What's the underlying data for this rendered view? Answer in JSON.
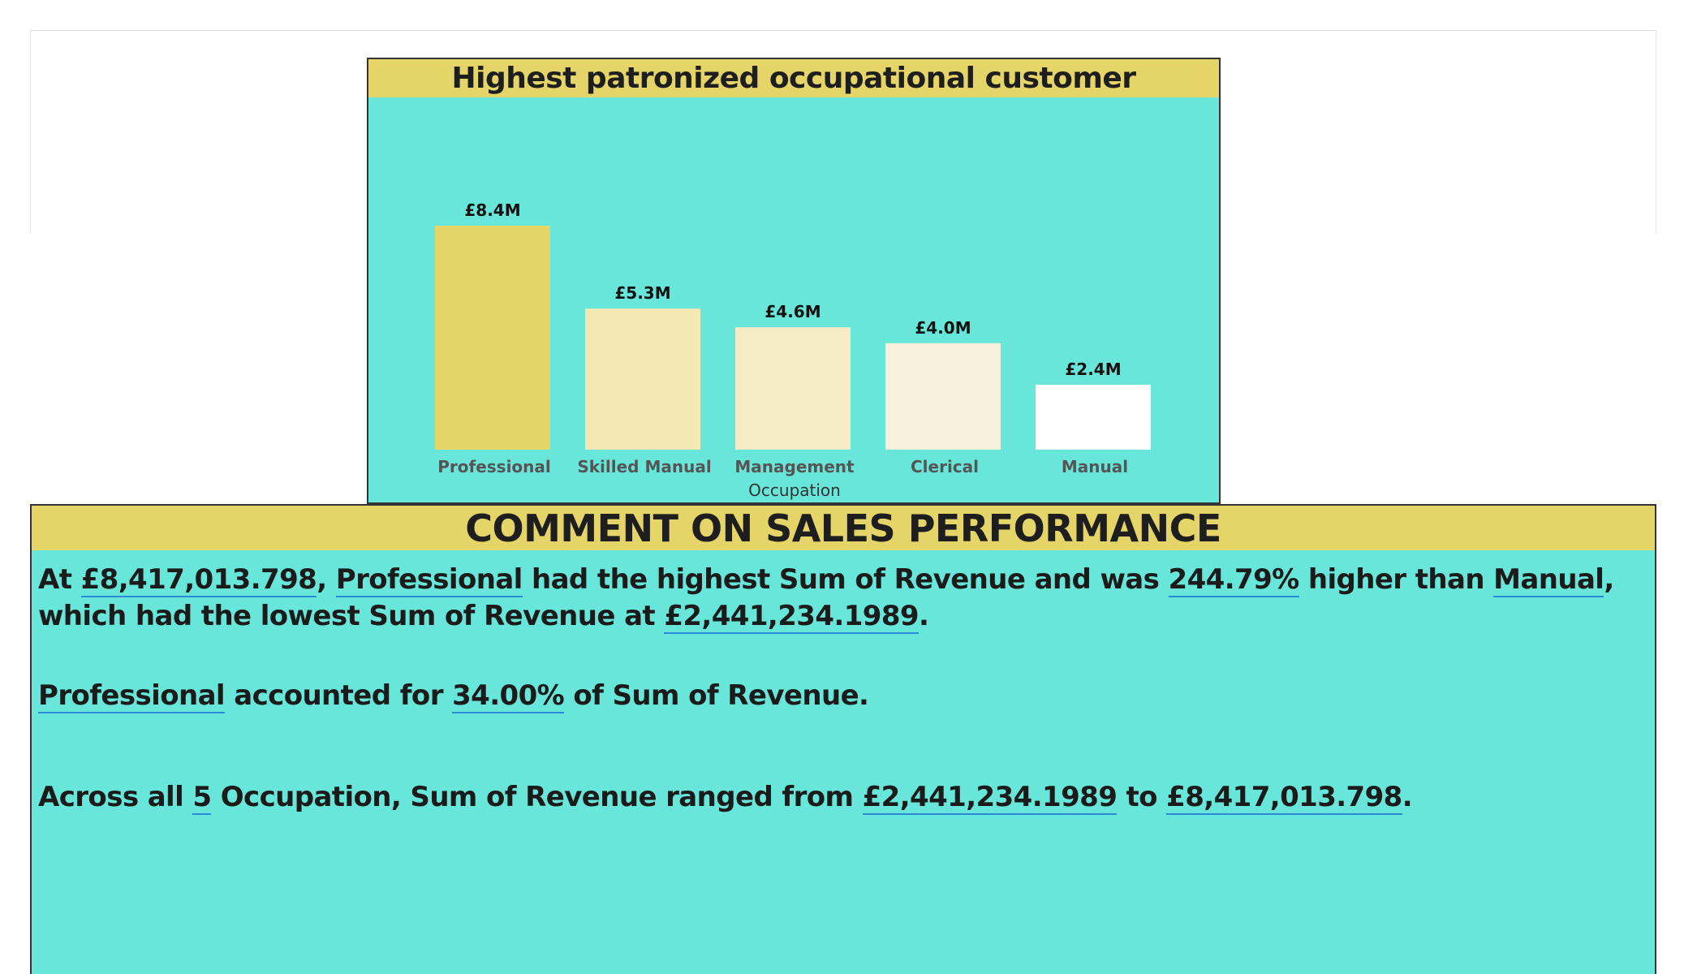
{
  "chart_data": {
    "type": "bar",
    "title": "Highest patronized occupational customer",
    "xlabel": "Occupation",
    "ylabel": "",
    "categories": [
      "Professional",
      "Skilled Manual",
      "Management",
      "Clerical",
      "Manual"
    ],
    "values": [
      8417013.798,
      5300000,
      4600000,
      4000000,
      2441234.1989
    ],
    "data_labels": [
      "£8.4M",
      "£5.3M",
      "£4.6M",
      "£4.0M",
      "£2.4M"
    ],
    "bar_colors": [
      "#e5d468",
      "#f4e8b4",
      "#f5ecc6",
      "#f7f0da",
      "#ffffff"
    ],
    "ylim": [
      0,
      8417013.798
    ],
    "grid": false,
    "legend": "none"
  },
  "colors": {
    "panel_background": "#68e6da",
    "header_background": "#e5d468",
    "link_underline": "#2a8ad8"
  },
  "comment": {
    "title": "COMMENT ON SALES PERFORMANCE",
    "p1": {
      "t1": "At ",
      "v1": "£8,417,013.798",
      "t2": ", ",
      "v2": "Professional",
      "t3": " had the highest Sum of Revenue and was ",
      "v3": "244.79%",
      "t4": " higher than ",
      "v4": "Manual",
      "t5": ", which had the lowest Sum of Revenue at ",
      "v5": "£2,441,234.1989",
      "t6": "."
    },
    "p2": {
      "v1": "Professional",
      "t1": " accounted for ",
      "v2": "34.00%",
      "t2": " of Sum of Revenue."
    },
    "p3": {
      "t1": "Across all ",
      "v1": "5",
      "t2": " Occupation, Sum of Revenue ranged from ",
      "v2": "£2,441,234.1989",
      "t3": " to ",
      "v3": "£8,417,013.798",
      "t4": "."
    }
  }
}
